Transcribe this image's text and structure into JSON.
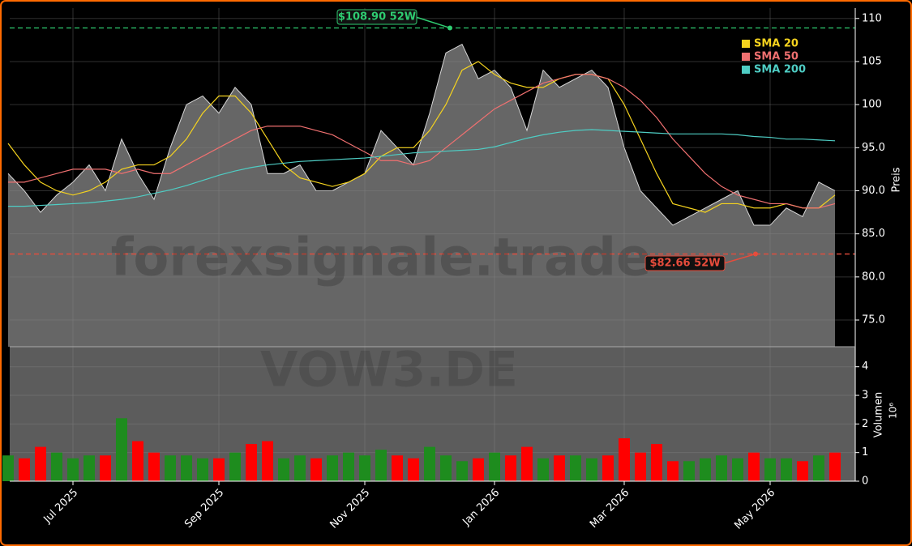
{
  "chart_data": {
    "type": "candlestick-volume",
    "watermark": "forexsignale.trade",
    "symbol_watermark": "VOW3.DE",
    "y_label": "Preis",
    "y2_label": "Volumen",
    "y2_multiplier": "10⁶",
    "categories": [
      null,
      null,
      null,
      null,
      "Jul 2025",
      null,
      null,
      null,
      null,
      null,
      null,
      null,
      null,
      "Sep 2025",
      null,
      null,
      null,
      null,
      null,
      null,
      null,
      null,
      "Nov 2025",
      null,
      null,
      null,
      null,
      null,
      null,
      null,
      "Jan 2026",
      null,
      null,
      null,
      null,
      null,
      null,
      null,
      "Mar 2026",
      null,
      null,
      null,
      null,
      null,
      null,
      null,
      null,
      "May 2026",
      null,
      null,
      null,
      null
    ],
    "close": [
      92,
      90,
      87.5,
      89.5,
      91,
      93,
      90,
      96,
      92,
      89,
      95,
      100,
      101,
      99,
      102,
      100,
      92,
      92,
      93,
      90,
      90,
      91,
      92,
      97,
      95,
      93,
      99,
      106,
      107,
      103,
      104,
      102,
      97,
      104,
      102,
      103,
      104,
      102,
      95,
      90,
      88,
      86,
      87,
      88,
      89,
      90,
      86,
      86,
      88,
      87,
      91,
      90
    ],
    "price_fill": "#666666",
    "series": [
      {
        "name": "SMA 20",
        "color": "#f5d31e",
        "values": [
          95.5,
          93,
          91,
          90,
          89.5,
          90,
          91,
          92.5,
          93,
          93,
          94,
          96,
          99,
          101,
          101,
          99,
          96,
          93,
          91.5,
          91,
          90.5,
          91,
          92,
          94,
          95,
          95,
          97,
          100,
          104,
          105,
          103.5,
          102.5,
          102,
          102,
          103,
          103.5,
          103.5,
          103,
          100,
          96,
          92,
          88.5,
          88,
          87.5,
          88.5,
          88.5,
          88,
          88,
          88.5,
          88,
          88,
          89.5
        ]
      },
      {
        "name": "SMA 50",
        "color": "#f07070",
        "values": [
          91,
          91,
          91.5,
          92,
          92.5,
          92.5,
          92.5,
          92,
          92.5,
          92,
          92,
          93,
          94,
          95,
          96,
          97,
          97.5,
          97.5,
          97.5,
          97,
          96.5,
          95.5,
          94.5,
          93.5,
          93.5,
          93,
          93.5,
          95,
          96.5,
          98,
          99.5,
          100.5,
          101.5,
          102.5,
          103,
          103.5,
          103.5,
          103,
          102,
          100.5,
          98.5,
          96,
          94,
          92,
          90.5,
          89.5,
          89,
          88.5,
          88.5,
          88,
          88,
          88.5
        ]
      },
      {
        "name": "SMA 200",
        "color": "#4ecdc4",
        "values": [
          88.2,
          88.2,
          88.3,
          88.4,
          88.5,
          88.6,
          88.8,
          89,
          89.3,
          89.7,
          90.1,
          90.6,
          91.2,
          91.8,
          92.3,
          92.7,
          93,
          93.2,
          93.4,
          93.5,
          93.6,
          93.7,
          93.8,
          94,
          94.2,
          94.4,
          94.5,
          94.6,
          94.7,
          94.8,
          95.1,
          95.6,
          96.1,
          96.5,
          96.8,
          97,
          97.1,
          97,
          96.9,
          96.8,
          96.7,
          96.6,
          96.6,
          96.6,
          96.6,
          96.5,
          96.3,
          96.2,
          96,
          96,
          95.9,
          95.8
        ]
      }
    ],
    "volume": [
      0.9,
      0.8,
      1.2,
      1.0,
      0.8,
      0.9,
      0.9,
      2.2,
      1.4,
      1.0,
      0.9,
      0.9,
      0.8,
      0.8,
      1.0,
      1.3,
      1.4,
      0.8,
      0.9,
      0.8,
      0.9,
      1.0,
      0.9,
      1.1,
      0.9,
      0.8,
      1.2,
      0.9,
      0.7,
      0.8,
      1.0,
      0.9,
      1.2,
      0.8,
      0.9,
      0.9,
      0.8,
      0.9,
      1.5,
      1.0,
      1.3,
      0.7,
      0.7,
      0.8,
      0.9,
      0.8,
      1.0,
      0.8,
      0.8,
      0.7,
      0.9,
      1.0
    ],
    "up_color": "#1e8c1e",
    "down_color": "#ff0000",
    "high": {
      "value": 108.9,
      "label": "$108.90 52W",
      "color": "#2ecc71"
    },
    "low": {
      "value": 82.66,
      "label": "$82.66 52W",
      "color": "#e74c3c"
    },
    "ylim": [
      71.9,
      111.2
    ],
    "yticks": [
      {
        "value": 75,
        "label": "75.0"
      },
      {
        "value": 80,
        "label": "80.0"
      },
      {
        "value": 85,
        "label": "85.0"
      },
      {
        "value": 90,
        "label": "90.0"
      },
      {
        "value": 95,
        "label": "95.0"
      },
      100,
      105,
      110
    ],
    "y2lim": [
      0,
      4.7
    ],
    "y2ticks": [
      0,
      1,
      2,
      3,
      4
    ],
    "grid": true,
    "legend": "upper right"
  }
}
